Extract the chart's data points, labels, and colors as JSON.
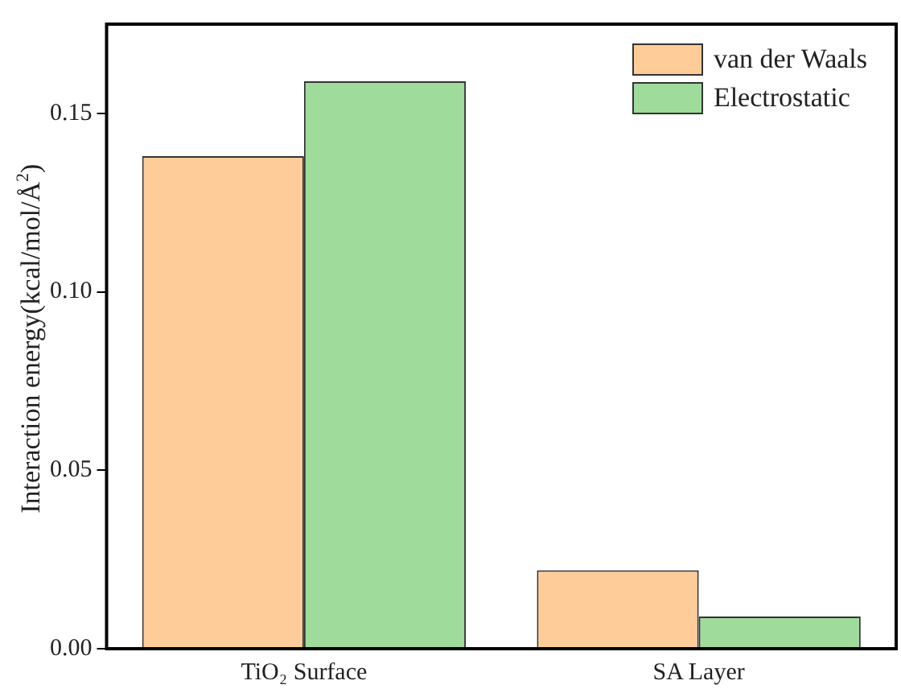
{
  "chart_data": {
    "type": "bar",
    "ylabel": "Interaction energy(kcal/mol/Å$^{2}$)",
    "categories": [
      "TiO₂ Surface",
      "SA Layer"
    ],
    "series": [
      {
        "name": "van der Waals",
        "color": "#fdcc98",
        "values": [
          0.138,
          0.022
        ]
      },
      {
        "name": "Electrostatic",
        "color": "#9fdc9c",
        "values": [
          0.159,
          0.009
        ]
      }
    ],
    "ylim": [
      0,
      0.175
    ],
    "yticks": [
      {
        "value": 0,
        "label": "0.00"
      },
      0.05,
      {
        "value": 0.1,
        "label": "0.10"
      },
      0.15
    ],
    "grid": false,
    "legend": "top right"
  }
}
